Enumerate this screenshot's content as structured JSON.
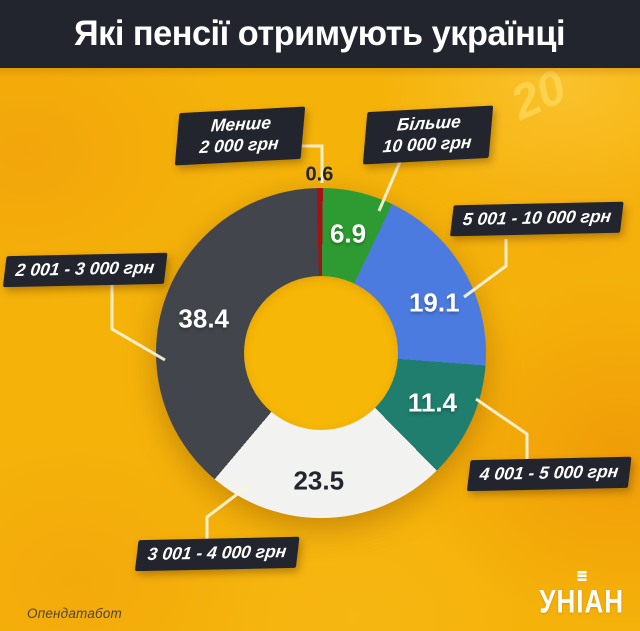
{
  "header": {
    "title": "Які пенсії отримують українці"
  },
  "chart_data": {
    "type": "pie",
    "variant": "donut",
    "title": "Які пенсії отримують українці",
    "values_unit": "percent",
    "start_angle_deg": -1.5,
    "segments": [
      {
        "label": "Менше 2 000 грн",
        "value": 0.6,
        "color": "#a31215"
      },
      {
        "label": "Більше 10 000 грн",
        "value": 6.9,
        "color": "#2d9b31"
      },
      {
        "label": "5 001 - 10 000 грн",
        "value": 19.1,
        "color": "#4c7be0"
      },
      {
        "label": "4 001 - 5 000 грн",
        "value": 11.4,
        "color": "#207e6e"
      },
      {
        "label": "3 001 - 4 000 грн",
        "value": 23.5,
        "color": "#f2f3f1"
      },
      {
        "label": "2 001 - 3 000 грн",
        "value": 38.4,
        "color": "#42454b"
      }
    ],
    "legend_position": "callout-labels"
  },
  "colors": {
    "background_yellow": "#f5b30a",
    "panel_dark": "#23252e",
    "leader_line": "#fbf3d9",
    "value_dark_text": "#23262f"
  },
  "background": {
    "watermark": "20"
  },
  "footer": {
    "source": "Опендатабот",
    "logo_text": "УНІАН"
  }
}
